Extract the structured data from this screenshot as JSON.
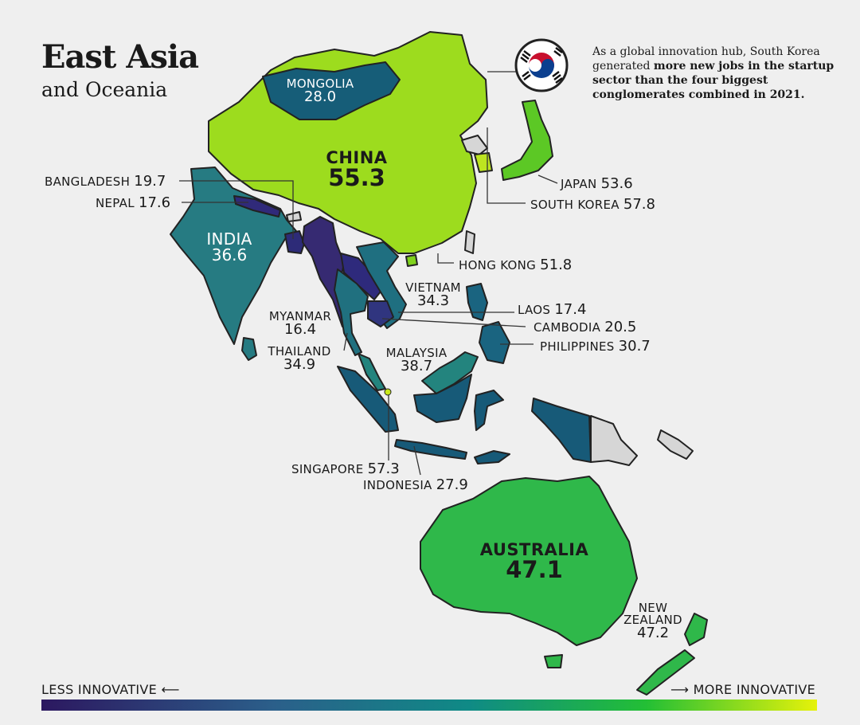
{
  "title": "East Asia",
  "subtitle": "and Oceania",
  "note": {
    "part1": "As a global innovation hub, South Korea generated ",
    "bold": "more new jobs in the startup sector than the four biggest conglomerates combined in 2021."
  },
  "flag_icon": "south-korea-flag-icon",
  "countries": {
    "mongolia": {
      "name": "MONGOLIA",
      "value": "28.0",
      "color": "#165d78"
    },
    "china": {
      "name": "CHINA",
      "value": "55.3",
      "color": "#9ddc1e"
    },
    "bangladesh": {
      "name": "BANGLADESH",
      "value": "19.7",
      "color": "#2d2b78"
    },
    "nepal": {
      "name": "NEPAL",
      "value": "17.6",
      "color": "#302a7a"
    },
    "india": {
      "name": "INDIA",
      "value": "36.6",
      "color": "#267b82"
    },
    "japan": {
      "name": "JAPAN",
      "value": "53.6",
      "color": "#5cc825"
    },
    "south_korea": {
      "name": "SOUTH KOREA",
      "value": "57.8",
      "color": "#bde520"
    },
    "hong_kong": {
      "name": "HONG KONG",
      "value": "51.8",
      "color": "#7fd21c"
    },
    "vietnam": {
      "name": "VIETNAM",
      "value": "34.3",
      "color": "#1f6f80"
    },
    "laos": {
      "name": "LAOS",
      "value": "17.4",
      "color": "#2e2a7c"
    },
    "myanmar": {
      "name": "MYANMAR",
      "value": "16.4",
      "color": "#362a72"
    },
    "cambodia": {
      "name": "CAMBODIA",
      "value": "20.5",
      "color": "#30357f"
    },
    "thailand": {
      "name": "THAILAND",
      "value": "34.9",
      "color": "#20707f"
    },
    "malaysia": {
      "name": "MALAYSIA",
      "value": "38.7",
      "color": "#23847e"
    },
    "philippines": {
      "name": "PHILIPPINES",
      "value": "30.7",
      "color": "#1a6480"
    },
    "singapore": {
      "name": "SINGAPORE",
      "value": "57.3",
      "color": "#c8e81a"
    },
    "indonesia": {
      "name": "INDONESIA",
      "value": "27.9",
      "color": "#175a78"
    },
    "australia": {
      "name": "AUSTRALIA",
      "value": "47.1",
      "color": "#2fb84a"
    },
    "new_zealand": {
      "name_line1": "NEW",
      "name_line2": "ZEALAND",
      "value": "47.2",
      "color": "#2fb84a"
    }
  },
  "no_data_color": "#d6d6d6",
  "legend": {
    "left": "LESS INNOVATIVE ⟵",
    "right": "⟶ MORE INNOVATIVE"
  }
}
